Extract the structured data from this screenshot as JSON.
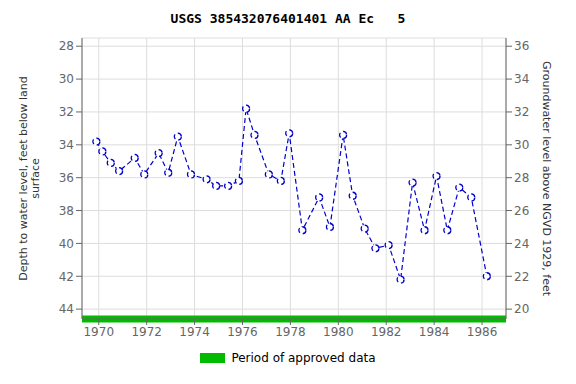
{
  "chart_data": {
    "type": "line",
    "title": "USGS 385432076401401 AA Ec   5",
    "y_label": "Depth to water level, feet below land\nsurface",
    "y2_label": "Groundwater level above NGVD 1929, feet",
    "x": [
      1969.9,
      1970.15,
      1970.5,
      1970.85,
      1971.5,
      1971.9,
      1972.5,
      1972.9,
      1973.3,
      1973.85,
      1974.5,
      1974.9,
      1975.4,
      1975.85,
      1976.15,
      1976.5,
      1977.1,
      1977.6,
      1977.95,
      1978.5,
      1979.2,
      1979.65,
      1980.2,
      1980.6,
      1981.1,
      1981.55,
      1982.1,
      1982.6,
      1983.1,
      1983.6,
      1984.1,
      1984.55,
      1985.05,
      1985.55,
      1986.2
    ],
    "series": [
      {
        "values": [
          33.8,
          34.4,
          35.1,
          35.6,
          34.8,
          35.8,
          34.5,
          35.7,
          33.5,
          35.8,
          36.1,
          36.5,
          36.5,
          36.2,
          31.8,
          33.4,
          35.8,
          36.2,
          33.3,
          39.2,
          37.2,
          39.0,
          33.4,
          37.1,
          39.1,
          40.3,
          40.1,
          42.2,
          36.3,
          39.2,
          35.9,
          39.2,
          36.6,
          37.2,
          42.0
        ],
        "color": "#0000cc",
        "line_style": "dashed",
        "marker": "circle"
      }
    ],
    "xlim": [
      1969.3,
      1987.0
    ],
    "xticks": [
      1970,
      1972,
      1974,
      1976,
      1978,
      1980,
      1982,
      1984,
      1986
    ],
    "ylim": [
      44.6,
      27.5
    ],
    "yticks": [
      28,
      30,
      32,
      34,
      36,
      38,
      40,
      42,
      44
    ],
    "y2lim": [
      19.4,
      36.5
    ],
    "y2ticks": [
      20,
      22,
      24,
      26,
      28,
      30,
      32,
      34,
      36
    ],
    "grid": true,
    "legend": "bottom",
    "bands": [
      {
        "name": "Period of approved data",
        "color": "#00bb00",
        "x": [
          1969.3,
          1987.0
        ]
      }
    ]
  }
}
